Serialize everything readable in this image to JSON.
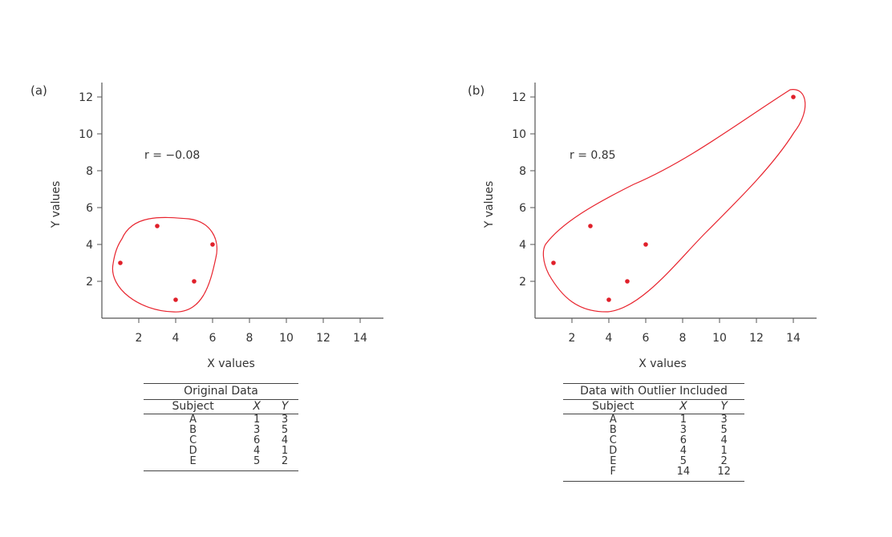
{
  "chart_data": [
    {
      "type": "scatter",
      "panel_label": "(a)",
      "annotation": "r = −0.08",
      "xlabel": "X values",
      "ylabel": "Y values",
      "xlim": [
        0,
        15
      ],
      "ylim": [
        0,
        13
      ],
      "xticks": [
        2,
        4,
        6,
        8,
        10,
        12,
        14
      ],
      "yticks": [
        2,
        4,
        6,
        8,
        10,
        12
      ],
      "points": [
        {
          "x": 1,
          "y": 3
        },
        {
          "x": 3,
          "y": 5
        },
        {
          "x": 6,
          "y": 4
        },
        {
          "x": 4,
          "y": 1
        },
        {
          "x": 5,
          "y": 2
        }
      ],
      "table": {
        "title": "Original Data",
        "headers": [
          "Subject",
          "X",
          "Y"
        ],
        "rows": [
          [
            "A",
            "1",
            "3"
          ],
          [
            "B",
            "3",
            "5"
          ],
          [
            "C",
            "6",
            "4"
          ],
          [
            "D",
            "4",
            "1"
          ],
          [
            "E",
            "5",
            "2"
          ]
        ]
      }
    },
    {
      "type": "scatter",
      "panel_label": "(b)",
      "annotation": "r = 0.85",
      "xlabel": "X values",
      "ylabel": "Y values",
      "xlim": [
        0,
        15
      ],
      "ylim": [
        0,
        13
      ],
      "xticks": [
        2,
        4,
        6,
        8,
        10,
        12,
        14
      ],
      "yticks": [
        2,
        4,
        6,
        8,
        10,
        12
      ],
      "points": [
        {
          "x": 1,
          "y": 3
        },
        {
          "x": 3,
          "y": 5
        },
        {
          "x": 6,
          "y": 4
        },
        {
          "x": 4,
          "y": 1
        },
        {
          "x": 5,
          "y": 2
        },
        {
          "x": 14,
          "y": 12
        }
      ],
      "table": {
        "title": "Data with Outlier Included",
        "headers": [
          "Subject",
          "X",
          "Y"
        ],
        "rows": [
          [
            "A",
            "1",
            "3"
          ],
          [
            "B",
            "3",
            "5"
          ],
          [
            "C",
            "6",
            "4"
          ],
          [
            "D",
            "4",
            "1"
          ],
          [
            "E",
            "5",
            "2"
          ],
          [
            "F",
            "14",
            "12"
          ]
        ]
      }
    }
  ],
  "colors": {
    "points": "#e0202a",
    "outline": "#e8242e",
    "axis": "#555555",
    "text": "#333333"
  }
}
